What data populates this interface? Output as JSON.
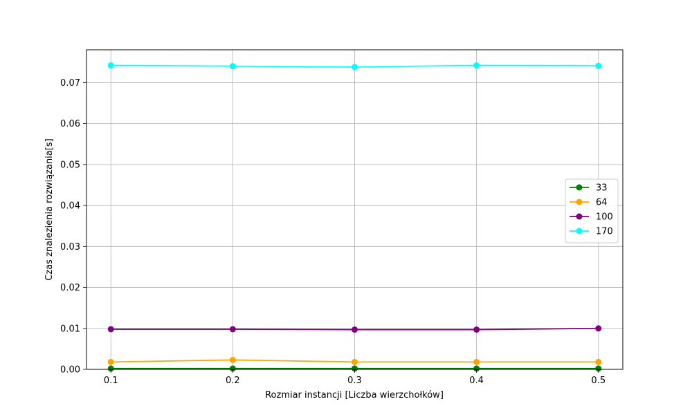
{
  "chart_data": {
    "type": "line",
    "title": "",
    "xlabel": "Rozmiar instancji [Liczba wierzchołków]",
    "ylabel": "Czas znalezienia rozwiązania[s]",
    "x": [
      0.1,
      0.2,
      0.3,
      0.4,
      0.5
    ],
    "x_tick_labels": [
      "0.1",
      "0.2",
      "0.3",
      "0.4",
      "0.5"
    ],
    "xlim": [
      0.08,
      0.52
    ],
    "ylim": [
      0.0,
      0.078
    ],
    "y_ticks": [
      0.0,
      0.01,
      0.02,
      0.03,
      0.04,
      0.05,
      0.06,
      0.07
    ],
    "y_tick_labels": [
      "0.00",
      "0.01",
      "0.02",
      "0.03",
      "0.04",
      "0.05",
      "0.06",
      "0.07"
    ],
    "grid": true,
    "legend_position": "center-right",
    "series": [
      {
        "name": "33",
        "color": "#008000",
        "values": [
          0.0002,
          0.0002,
          0.0002,
          0.0002,
          0.0002
        ]
      },
      {
        "name": "64",
        "color": "#ffa500",
        "values": [
          0.0018,
          0.0023,
          0.0018,
          0.0018,
          0.0018
        ]
      },
      {
        "name": "100",
        "color": "#800080",
        "values": [
          0.0098,
          0.0098,
          0.0097,
          0.0097,
          0.01
        ]
      },
      {
        "name": "170",
        "color": "#00ffff",
        "values": [
          0.0742,
          0.074,
          0.0738,
          0.0742,
          0.0741
        ]
      }
    ]
  }
}
